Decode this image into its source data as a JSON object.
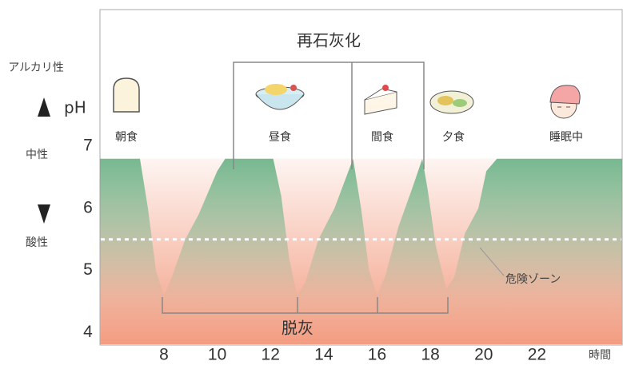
{
  "chart_data": {
    "type": "area",
    "y_label": "pH",
    "x_label": "時間",
    "y_side_labels": {
      "alkaline": "アルカリ性",
      "neutral": "中性",
      "acidic": "酸性"
    },
    "events": [
      "朝食",
      "昼食",
      "間食",
      "夕食",
      "睡眠中"
    ],
    "remineralization_label": "再石灰化",
    "demineralization_label": "脱灰",
    "danger_label": "危険ゾーン",
    "danger_level": 5.5,
    "x": [
      5.6,
      7.1,
      7.4,
      7.7,
      8,
      8.3,
      8.8,
      9.3,
      10,
      10.3,
      12.1,
      12.4,
      12.7,
      13,
      13.3,
      13.8,
      14.4,
      15.1,
      15.4,
      15.7,
      16,
      16.3,
      16.8,
      17.3,
      17.7,
      17.9,
      18.2,
      18.6,
      18.9,
      19.3,
      19.8,
      20.1,
      20.5,
      25.2
    ],
    "values": [
      6.8,
      6.8,
      6.0,
      5.0,
      4.6,
      4.9,
      5.5,
      5.9,
      6.6,
      6.8,
      6.8,
      6.2,
      5.2,
      4.6,
      4.8,
      5.5,
      6.0,
      6.8,
      6.0,
      5.0,
      4.6,
      4.9,
      5.7,
      6.3,
      6.8,
      6.3,
      5.4,
      4.7,
      4.9,
      5.6,
      6.0,
      6.6,
      6.8,
      6.8
    ],
    "xlim": [
      5.6,
      25.2
    ],
    "ylim": [
      3.8,
      9.2
    ],
    "xticks": [
      8,
      10,
      12,
      14,
      16,
      18,
      20,
      22
    ],
    "yticks": [
      4,
      5,
      6,
      7
    ],
    "area_color": "#5fae7e",
    "dip_color": "#f2977a",
    "danger_color": "#ffffff"
  }
}
